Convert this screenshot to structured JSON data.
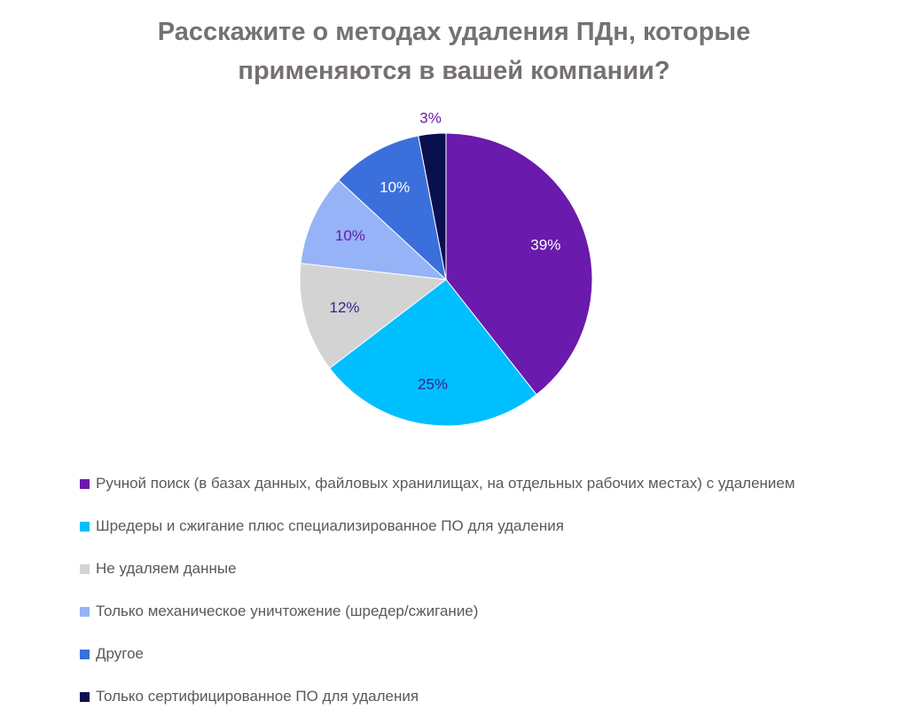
{
  "chart_data": {
    "type": "pie",
    "title": "Расскажите о методах удаления ПДн, которые применяются в вашей компании?",
    "title_lines": [
      "Расскажите о методах удаления ПДн, которые",
      "применяются в вашей компании?"
    ],
    "categories": [
      "Ручной поиск (в базах данных, файловых хранилищах, на отдельных рабочих местах) с удалением",
      "Шредеры и сжигание плюс специализированное ПО для удаления",
      "Не удаляем данные",
      "Только механическое уничтожение (шредер/сжигание)",
      "Другое",
      "Только сертифицированное ПО для удаления"
    ],
    "values": [
      39,
      25,
      12,
      10,
      10,
      3
    ],
    "value_labels": [
      "39%",
      "25%",
      "12%",
      "10%",
      "10%",
      "3%"
    ],
    "colors": [
      "#6A1AAD",
      "#00BFFF",
      "#D3D3D3",
      "#95B3F6",
      "#3B6FDC",
      "#0A0F4F"
    ],
    "label_colors": [
      "#FFFFFF",
      "#3A1F8F",
      "#3A1F8F",
      "#6A1AAD",
      "#FFFFFF",
      "#6A1AAD"
    ],
    "legend_position": "bottom",
    "start_angle_deg": 0,
    "direction": "clockwise"
  }
}
